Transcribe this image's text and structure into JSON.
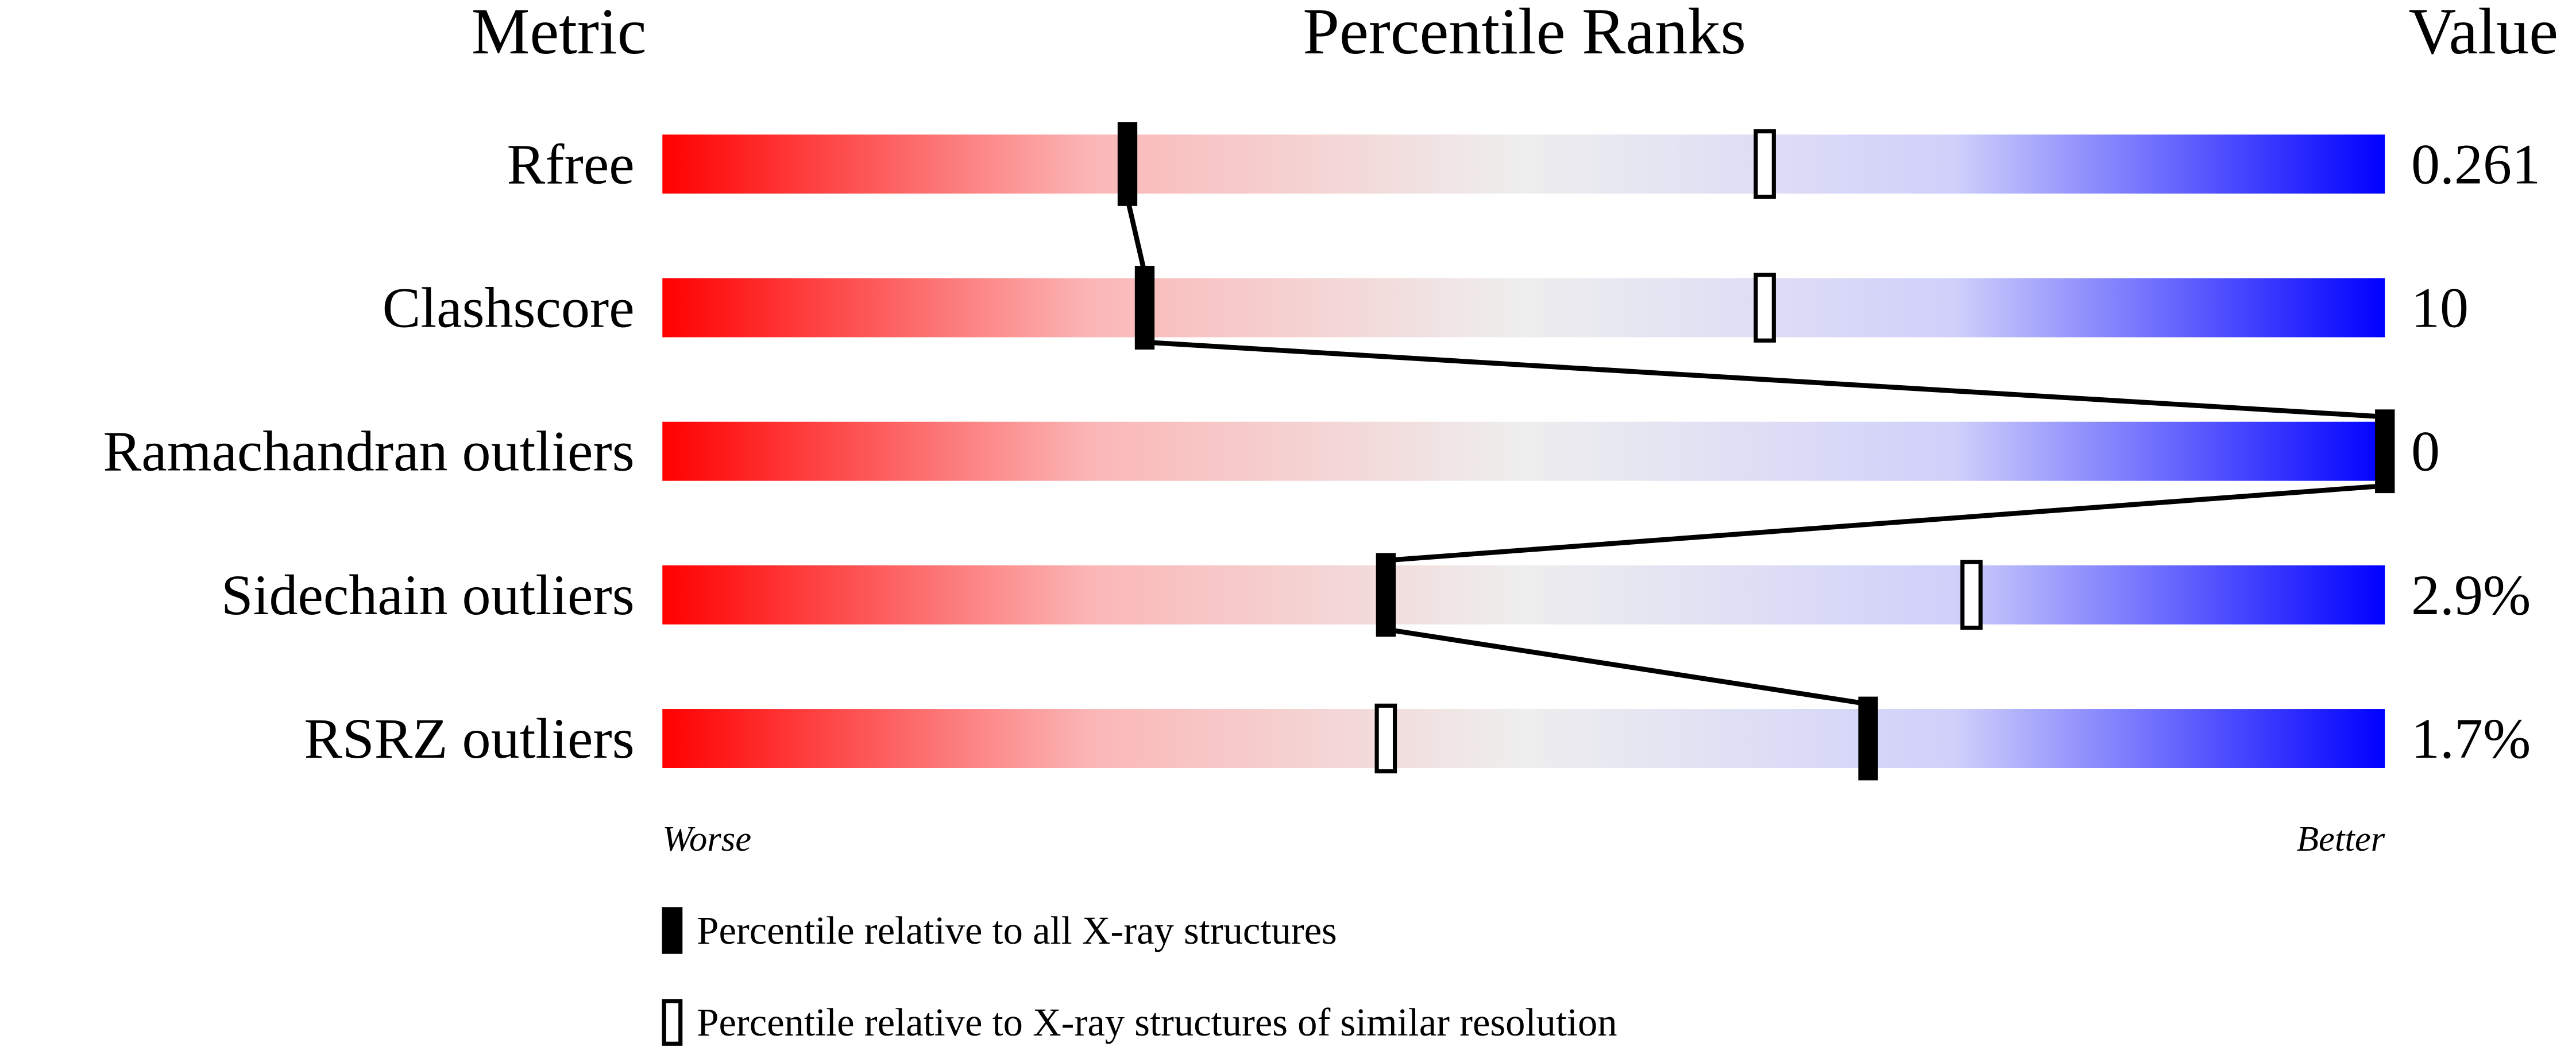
{
  "chart_data": {
    "type": "percentile",
    "headers": {
      "metric": "Metric",
      "ranks": "Percentile Ranks",
      "value": "Value"
    },
    "categories": [
      "Rfree",
      "Clashscore",
      "Ramachandran outliers",
      "Sidechain outliers",
      "RSRZ outliers"
    ],
    "series": [
      {
        "name": "Percentile relative to all X-ray structures",
        "color": "#000000",
        "values": [
          27,
          28,
          100,
          42,
          70
        ]
      },
      {
        "name": "Percentile relative to X-ray structures of similar resolution",
        "color": "#ffffff",
        "values": [
          64,
          64,
          null,
          76,
          42
        ]
      }
    ],
    "metric_values": [
      "0.261",
      "10",
      "0",
      "2.9%",
      "1.7%"
    ],
    "xlim": [
      0,
      100
    ],
    "scale_labels": {
      "low": "Worse",
      "high": "Better"
    }
  }
}
